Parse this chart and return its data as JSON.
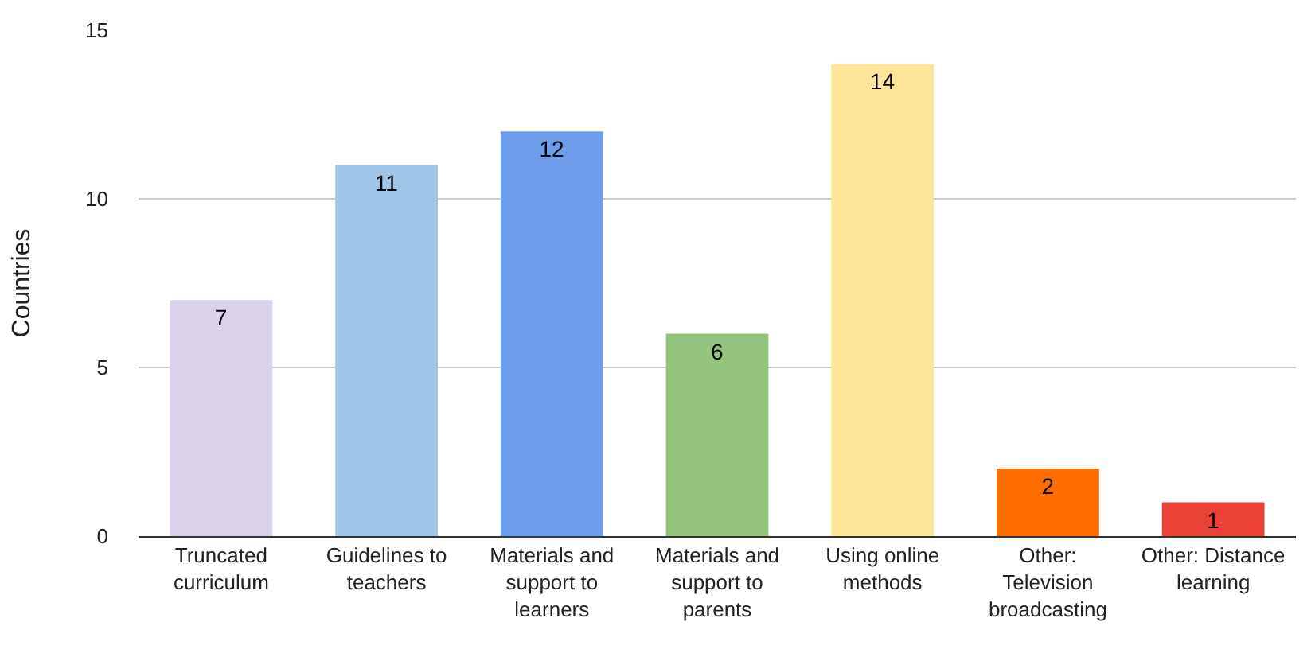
{
  "chart_data": {
    "type": "bar",
    "ylabel": "Countries",
    "categories": [
      "Truncated curriculum",
      "Guidelines to teachers",
      "Materials and support to learners",
      "Materials and support to parents",
      "Using online methods",
      "Other: Television broadcasting",
      "Other: Distance learning"
    ],
    "values": [
      7,
      11,
      12,
      6,
      14,
      2,
      1
    ],
    "colors": [
      "#d9d2e9",
      "#9fc5e8",
      "#6d9eeb",
      "#93c47d",
      "#ffe599",
      "#ff6d01",
      "#ea4335"
    ],
    "ylim": [
      0,
      15
    ],
    "yticks": [
      0,
      5,
      10,
      15
    ],
    "grid": "y",
    "data_labels": true
  }
}
